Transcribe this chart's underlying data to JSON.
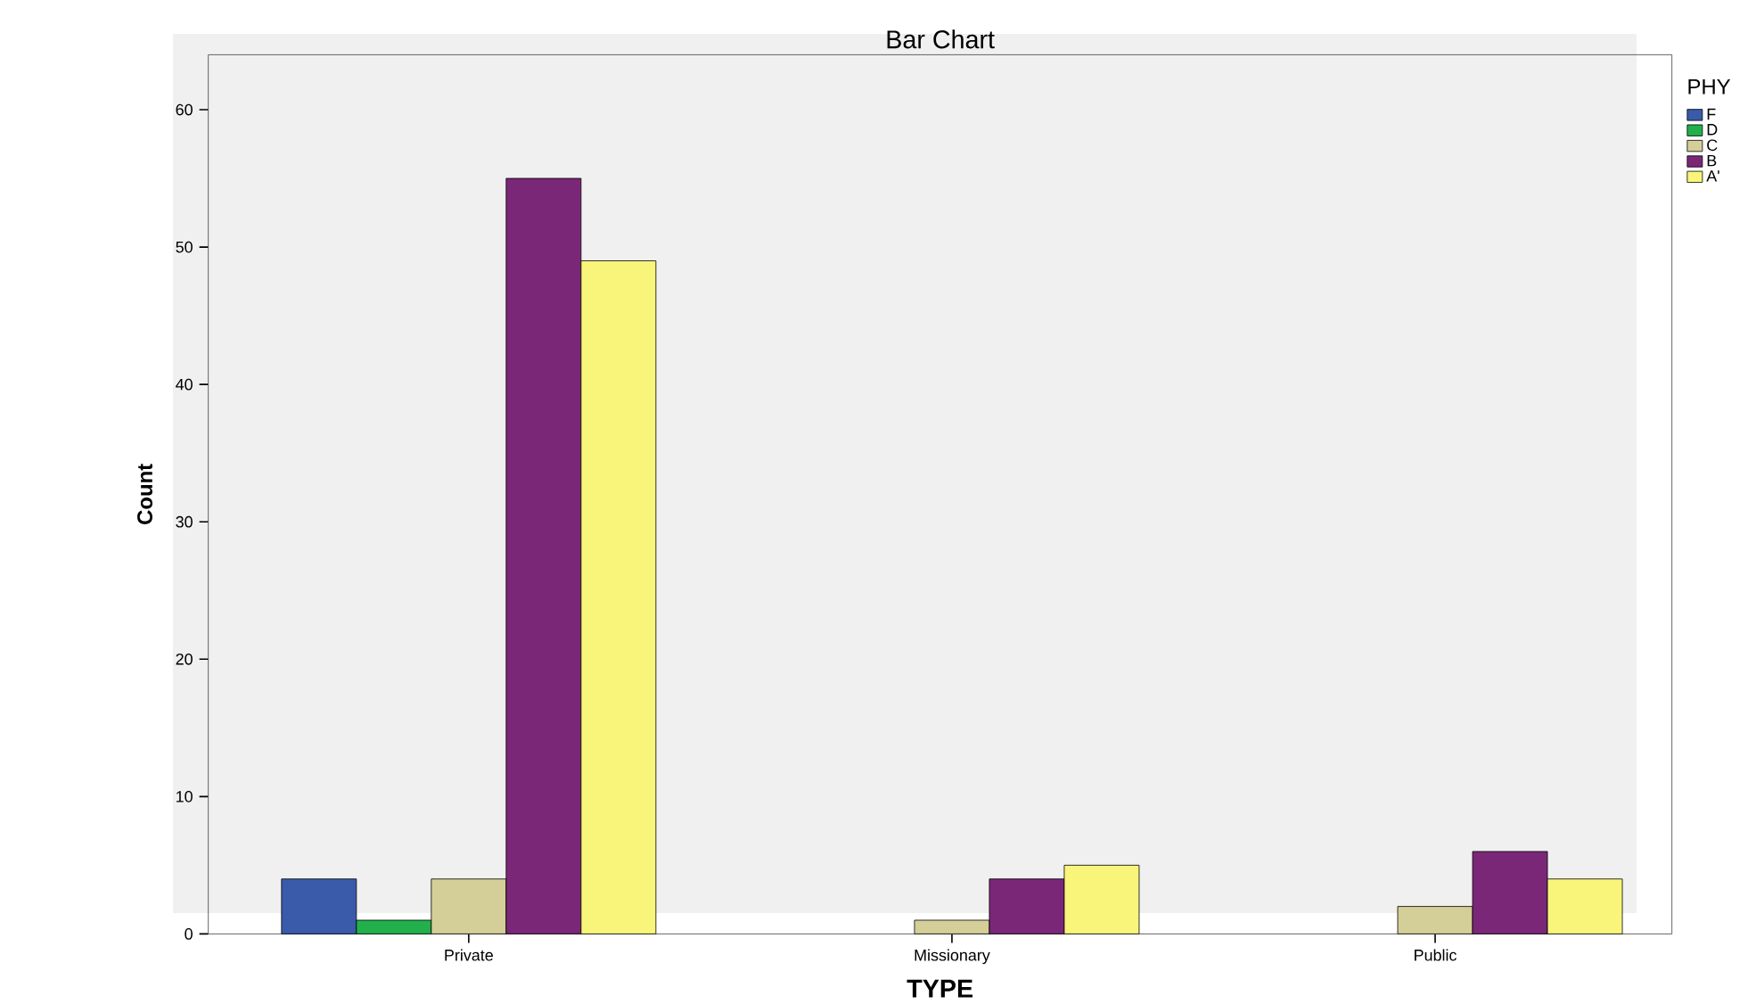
{
  "chart_data": {
    "type": "bar",
    "title": "Bar Chart",
    "xlabel": "TYPE",
    "ylabel": "Count",
    "legend_title": "PHY",
    "categories": [
      "Private",
      "Missionary",
      "Public"
    ],
    "series": [
      {
        "name": "F",
        "color": "#3a5aaa",
        "values": [
          4,
          null,
          null
        ]
      },
      {
        "name": "D",
        "color": "#21b04b",
        "values": [
          1,
          null,
          null
        ]
      },
      {
        "name": "C",
        "color": "#d4cf98",
        "values": [
          4,
          1,
          2
        ]
      },
      {
        "name": "B",
        "color": "#7b2778",
        "values": [
          55,
          4,
          6
        ]
      },
      {
        "name": "A'",
        "color": "#f9f57a",
        "values": [
          49,
          5,
          4
        ]
      }
    ],
    "ylim": [
      0,
      64
    ],
    "yticks": [
      0,
      10,
      20,
      30,
      40,
      50,
      60
    ],
    "grid": false,
    "legend": "top right"
  }
}
